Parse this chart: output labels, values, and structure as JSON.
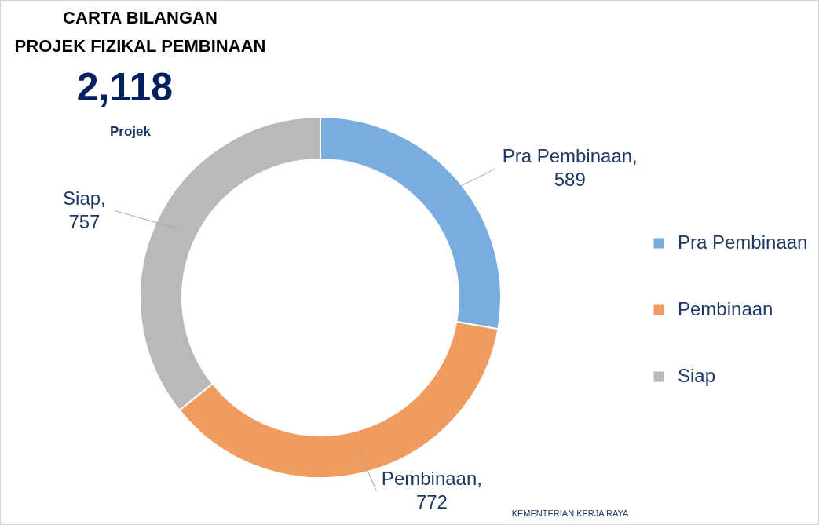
{
  "chart_data": {
    "type": "donut",
    "title": "CARTA BILANGAN\nPROJEK FIZIKAL PEMBINAAN",
    "subtitle": "2,118",
    "annotations": [
      "Projek",
      "KEMENTERIAN KERJA RAYA"
    ],
    "categories": [
      "Pra Pembinaan",
      "Pembinaan",
      "Siap"
    ],
    "values": [
      589,
      772,
      757
    ],
    "colors": [
      "#7aaddf",
      "#f09c60",
      "#b9b9b9"
    ],
    "value_labels": [
      "Pra Pembinaan, 589",
      "Pembinaan, 772",
      "Siap, 757"
    ],
    "legend": "right"
  }
}
